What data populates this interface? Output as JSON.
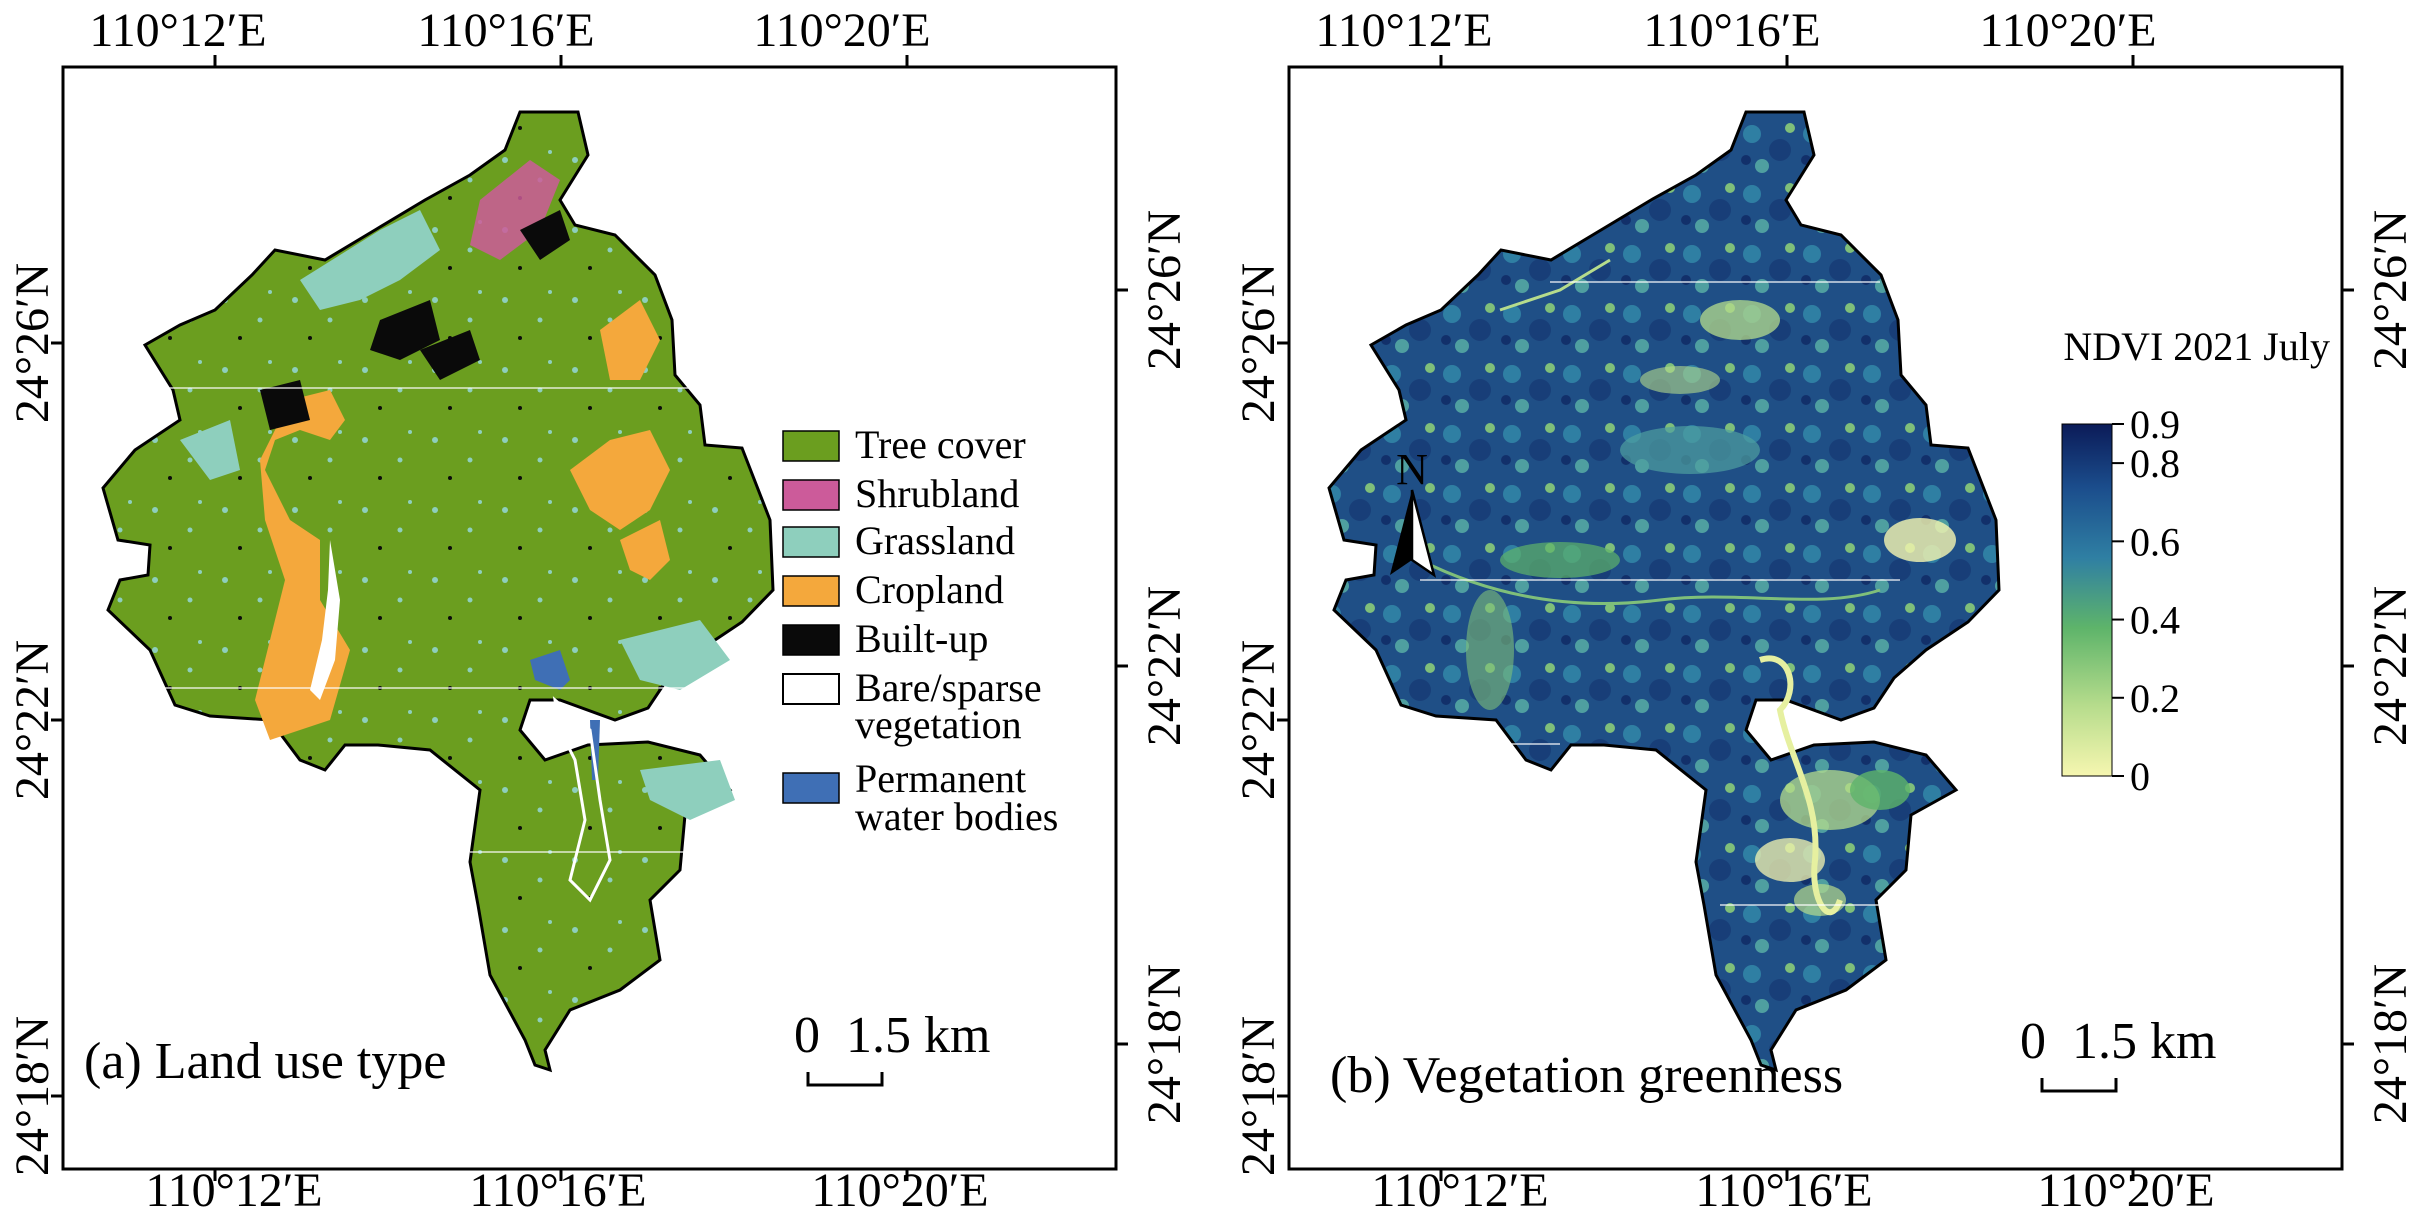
{
  "panels": [
    {
      "id": "a",
      "title": "(a) Land use type",
      "lon_labels": [
        "110°12′E",
        "110°16′E",
        "110°20′E"
      ],
      "lat_labels": [
        "24°26′N",
        "24°22′N",
        "24°18′N"
      ],
      "scale_bar": {
        "zero": "0",
        "value": "1.5 km"
      }
    },
    {
      "id": "b",
      "title": "(b) Vegetation greenness",
      "lon_labels": [
        "110°12′E",
        "110°16′E",
        "110°20′E"
      ],
      "lat_labels": [
        "24°26′N",
        "24°22′N",
        "24°18′N"
      ],
      "scale_bar": {
        "zero": "0",
        "value": "1.5 km"
      },
      "north_arrow": "N"
    }
  ],
  "legend": {
    "items": [
      {
        "label": "Tree cover",
        "color": "#6b9e1f"
      },
      {
        "label": "Shrubland",
        "color": "#cc5b9a"
      },
      {
        "label": "Grassland",
        "color": "#8ecfbd"
      },
      {
        "label": "Cropland",
        "color": "#f4a83c"
      },
      {
        "label": "Built-up",
        "color": "#0a0a0a"
      },
      {
        "label": "Bare/sparse",
        "label2": "vegetation",
        "color": "#ffffff"
      },
      {
        "label": "Permanent",
        "label2": "water bodies",
        "color": "#3f6fb5"
      }
    ]
  },
  "colorbar": {
    "title": "NDVI 2021 July",
    "ticks": [
      "0.9",
      "0.8",
      "0.6",
      "0.4",
      "0.2",
      "0"
    ],
    "range": [
      0,
      0.9
    ],
    "colors": [
      "#f6f6b0",
      "#b6dc8c",
      "#5eb46a",
      "#2f7fa3",
      "#1b4d8c",
      "#0b1b58"
    ]
  }
}
